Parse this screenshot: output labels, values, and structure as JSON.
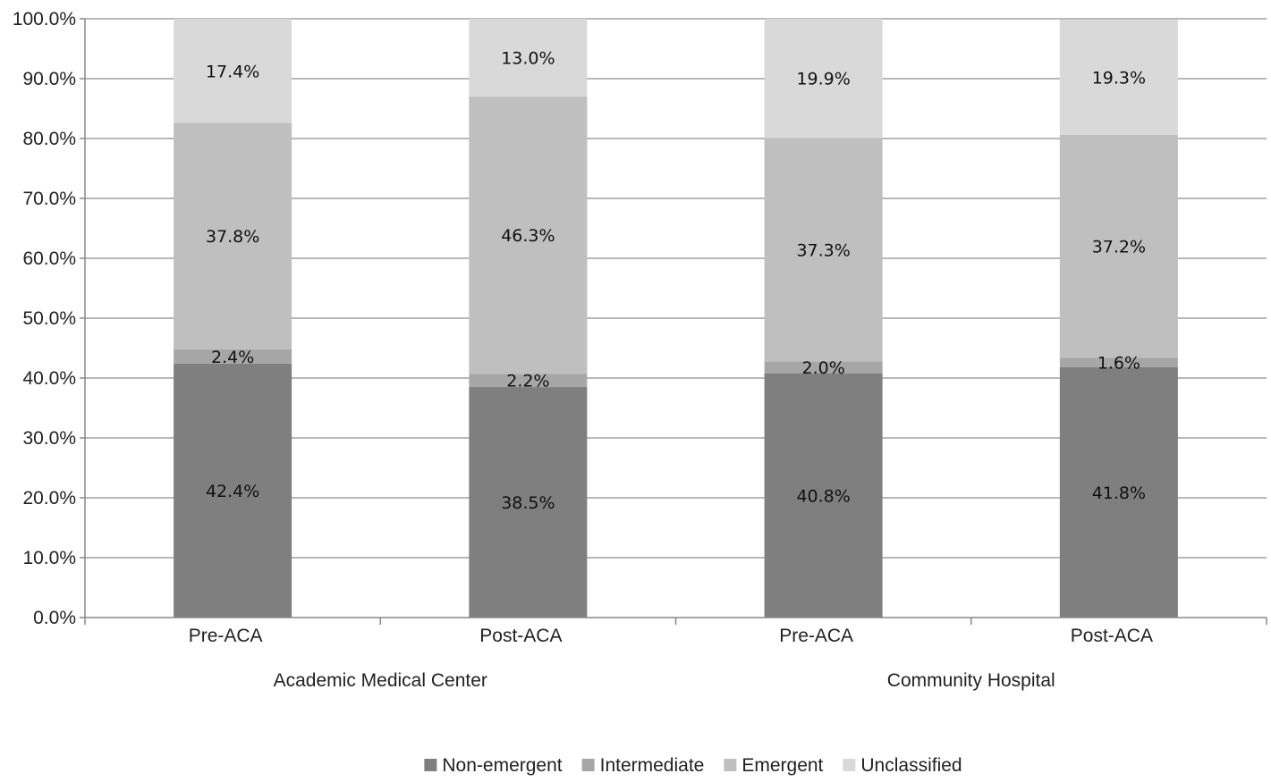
{
  "chart_data": {
    "type": "bar",
    "stacked": true,
    "title": "",
    "xlabel": "",
    "ylabel": "",
    "ylim": [
      0,
      100
    ],
    "y_ticks": [
      "0.0%",
      "10.0%",
      "20.0%",
      "30.0%",
      "40.0%",
      "50.0%",
      "60.0%",
      "70.0%",
      "80.0%",
      "90.0%",
      "100.0%"
    ],
    "categories": [
      "Pre-ACA",
      "Post-ACA",
      "Pre-ACA",
      "Post-ACA"
    ],
    "groups": [
      {
        "label": "Academic Medical Center",
        "categories": [
          0,
          1
        ]
      },
      {
        "label": "Community Hospital",
        "categories": [
          2,
          3
        ]
      }
    ],
    "series": [
      {
        "name": "Non-emergent",
        "color": "#7f7f7f",
        "values": [
          42.4,
          38.5,
          40.8,
          41.8
        ],
        "labels": [
          "42.4%",
          "38.5%",
          "40.8%",
          "41.8%"
        ]
      },
      {
        "name": "Intermediate",
        "color": "#a6a6a6",
        "values": [
          2.4,
          2.2,
          2.0,
          1.6
        ],
        "labels": [
          "2.4%",
          "2.2%",
          "2.0%",
          "1.6%"
        ]
      },
      {
        "name": "Emergent",
        "color": "#bfbfbf",
        "values": [
          37.8,
          46.3,
          37.3,
          37.2
        ],
        "labels": [
          "37.8%",
          "46.3%",
          "37.3%",
          "37.2%"
        ]
      },
      {
        "name": "Unclassified",
        "color": "#d9d9d9",
        "values": [
          17.4,
          13.0,
          19.9,
          19.3
        ],
        "labels": [
          "17.4%",
          "13.0%",
          "19.9%",
          "19.3%"
        ]
      }
    ],
    "grid": true,
    "legend_position": "bottom"
  }
}
